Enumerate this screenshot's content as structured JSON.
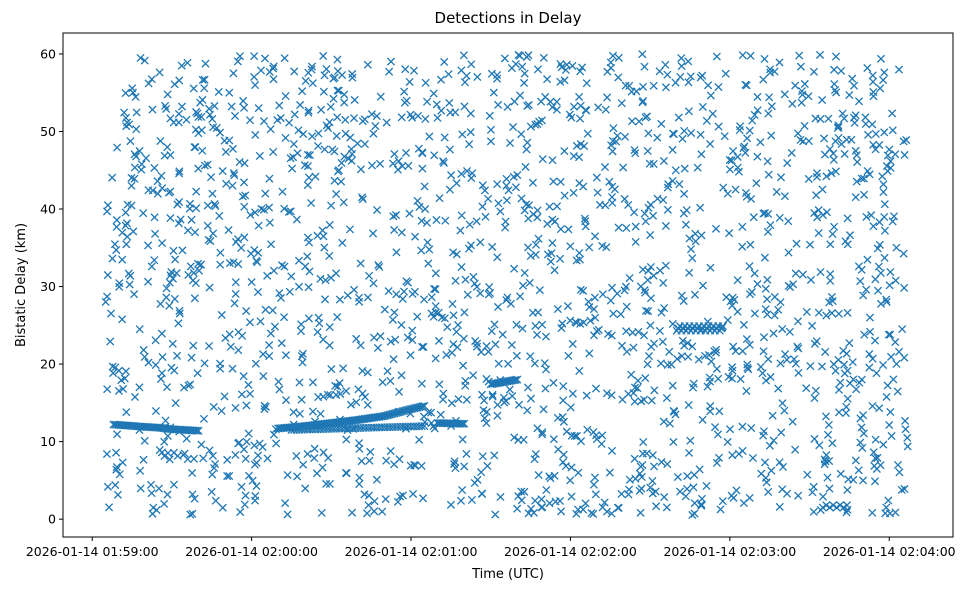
{
  "chart_data": {
    "type": "scatter",
    "title": "Detections in Delay",
    "xlabel": "Time (UTC)",
    "ylabel": "Bistatic Delay (km)",
    "x_axis_kind": "datetime",
    "xlim": [
      "2026-01-14 01:58:49",
      "2026-01-14 02:04:24"
    ],
    "ylim": [
      -2.3,
      62.7
    ],
    "xticks": [
      "2026-01-14 01:59:00",
      "2026-01-14 02:00:00",
      "2026-01-14 02:01:00",
      "2026-01-14 02:02:00",
      "2026-01-14 02:03:00",
      "2026-01-14 02:04:00"
    ],
    "yticks": [
      0,
      10,
      20,
      30,
      40,
      50,
      60
    ],
    "marker": "x",
    "color": "#1f77b4",
    "grid": false,
    "legend": "none",
    "time_start": "2026-01-14 01:59:05",
    "time_end": "2026-01-14 02:04:07",
    "y_min": 0.5,
    "y_max": 60,
    "points": [
      {
        "t": "2026-01-14 01:59:08",
        "y": 12.2
      },
      {
        "t": "2026-01-14 01:59:12",
        "y": 12.1
      },
      {
        "t": "2026-01-14 01:59:16",
        "y": 12.0
      },
      {
        "t": "2026-01-14 01:59:20",
        "y": 11.9
      },
      {
        "t": "2026-01-14 01:59:25",
        "y": 11.8
      },
      {
        "t": "2026-01-14 01:59:30",
        "y": 11.6
      },
      {
        "t": "2026-01-14 01:59:35",
        "y": 11.5
      },
      {
        "t": "2026-01-14 01:59:40",
        "y": 11.4
      },
      {
        "t": "2026-01-14 02:00:10",
        "y": 11.7
      },
      {
        "t": "2026-01-14 02:00:20",
        "y": 12.0
      },
      {
        "t": "2026-01-14 02:00:30",
        "y": 12.4
      },
      {
        "t": "2026-01-14 02:00:40",
        "y": 12.8
      },
      {
        "t": "2026-01-14 02:00:50",
        "y": 13.3
      },
      {
        "t": "2026-01-14 02:01:00",
        "y": 14.2
      },
      {
        "t": "2026-01-14 02:01:05",
        "y": 14.6
      },
      {
        "t": "2026-01-14 02:01:10",
        "y": 12.4
      },
      {
        "t": "2026-01-14 02:01:20",
        "y": 12.3
      },
      {
        "t": "2026-01-14 02:01:30",
        "y": 17.4
      },
      {
        "t": "2026-01-14 02:01:40",
        "y": 18.0
      },
      {
        "t": "2026-01-14 02:02:50",
        "y": 24.5
      },
      {
        "t": "2026-01-14 02:03:35",
        "y": 1.8
      },
      {
        "t": "2026-01-14 02:03:45",
        "y": 1.5
      }
    ]
  }
}
